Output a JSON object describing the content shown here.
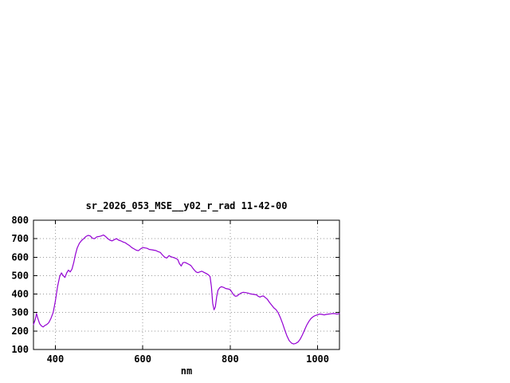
{
  "window": {
    "background_color": "#ffffff"
  },
  "chart_data": {
    "type": "line",
    "title": "sr_2026_053_MSE__y02_r_rad 11-42-00",
    "xlabel": "nm",
    "ylabel": "",
    "xlim": [
      350,
      1050
    ],
    "ylim": [
      100,
      800
    ],
    "xticks": [
      400,
      600,
      800,
      1000
    ],
    "yticks": [
      100,
      200,
      300,
      400,
      500,
      600,
      700,
      800
    ],
    "grid": true,
    "legend": false,
    "line_color": "#9400d3",
    "grid_color": "#9a9a9a",
    "axis_color": "#000000",
    "series": [
      {
        "name": "sr_2026_053_MSE__y02_r_rad",
        "color": "#9400d3",
        "points": [
          [
            350,
            235
          ],
          [
            354,
            262
          ],
          [
            357,
            295
          ],
          [
            360,
            268
          ],
          [
            364,
            240
          ],
          [
            368,
            228
          ],
          [
            372,
            222
          ],
          [
            376,
            230
          ],
          [
            380,
            235
          ],
          [
            385,
            245
          ],
          [
            390,
            268
          ],
          [
            395,
            300
          ],
          [
            400,
            360
          ],
          [
            405,
            440
          ],
          [
            410,
            495
          ],
          [
            414,
            515
          ],
          [
            418,
            500
          ],
          [
            422,
            490
          ],
          [
            426,
            515
          ],
          [
            430,
            530
          ],
          [
            434,
            520
          ],
          [
            438,
            535
          ],
          [
            442,
            570
          ],
          [
            446,
            615
          ],
          [
            450,
            650
          ],
          [
            455,
            675
          ],
          [
            460,
            690
          ],
          [
            465,
            700
          ],
          [
            470,
            712
          ],
          [
            475,
            718
          ],
          [
            480,
            715
          ],
          [
            485,
            702
          ],
          [
            490,
            700
          ],
          [
            495,
            710
          ],
          [
            500,
            712
          ],
          [
            505,
            715
          ],
          [
            510,
            720
          ],
          [
            515,
            712
          ],
          [
            520,
            700
          ],
          [
            525,
            692
          ],
          [
            530,
            688
          ],
          [
            535,
            695
          ],
          [
            540,
            700
          ],
          [
            545,
            692
          ],
          [
            550,
            688
          ],
          [
            555,
            682
          ],
          [
            560,
            678
          ],
          [
            565,
            670
          ],
          [
            570,
            662
          ],
          [
            575,
            652
          ],
          [
            580,
            645
          ],
          [
            585,
            638
          ],
          [
            590,
            635
          ],
          [
            595,
            645
          ],
          [
            600,
            652
          ],
          [
            605,
            650
          ],
          [
            610,
            648
          ],
          [
            615,
            642
          ],
          [
            620,
            640
          ],
          [
            625,
            638
          ],
          [
            630,
            636
          ],
          [
            635,
            630
          ],
          [
            640,
            626
          ],
          [
            645,
            612
          ],
          [
            650,
            600
          ],
          [
            655,
            595
          ],
          [
            660,
            608
          ],
          [
            665,
            602
          ],
          [
            670,
            598
          ],
          [
            675,
            594
          ],
          [
            680,
            588
          ],
          [
            684,
            565
          ],
          [
            688,
            552
          ],
          [
            692,
            570
          ],
          [
            696,
            572
          ],
          [
            700,
            568
          ],
          [
            705,
            562
          ],
          [
            710,
            555
          ],
          [
            714,
            542
          ],
          [
            718,
            530
          ],
          [
            722,
            520
          ],
          [
            726,
            516
          ],
          [
            730,
            520
          ],
          [
            735,
            524
          ],
          [
            740,
            518
          ],
          [
            745,
            512
          ],
          [
            750,
            505
          ],
          [
            754,
            495
          ],
          [
            757,
            440
          ],
          [
            760,
            350
          ],
          [
            763,
            315
          ],
          [
            766,
            330
          ],
          [
            769,
            385
          ],
          [
            772,
            420
          ],
          [
            776,
            435
          ],
          [
            780,
            440
          ],
          [
            785,
            436
          ],
          [
            790,
            430
          ],
          [
            795,
            428
          ],
          [
            800,
            424
          ],
          [
            804,
            410
          ],
          [
            808,
            396
          ],
          [
            812,
            388
          ],
          [
            816,
            390
          ],
          [
            820,
            398
          ],
          [
            825,
            406
          ],
          [
            830,
            410
          ],
          [
            835,
            408
          ],
          [
            840,
            406
          ],
          [
            845,
            402
          ],
          [
            850,
            400
          ],
          [
            855,
            398
          ],
          [
            860,
            396
          ],
          [
            864,
            388
          ],
          [
            868,
            384
          ],
          [
            872,
            388
          ],
          [
            876,
            390
          ],
          [
            880,
            382
          ],
          [
            885,
            372
          ],
          [
            890,
            355
          ],
          [
            895,
            340
          ],
          [
            900,
            325
          ],
          [
            905,
            315
          ],
          [
            910,
            298
          ],
          [
            915,
            272
          ],
          [
            920,
            240
          ],
          [
            925,
            205
          ],
          [
            930,
            172
          ],
          [
            935,
            148
          ],
          [
            940,
            135
          ],
          [
            945,
            130
          ],
          [
            950,
            133
          ],
          [
            955,
            140
          ],
          [
            960,
            155
          ],
          [
            965,
            178
          ],
          [
            970,
            205
          ],
          [
            975,
            232
          ],
          [
            980,
            252
          ],
          [
            985,
            268
          ],
          [
            990,
            278
          ],
          [
            995,
            284
          ],
          [
            1000,
            288
          ],
          [
            1005,
            292
          ],
          [
            1010,
            290
          ],
          [
            1015,
            287
          ],
          [
            1020,
            290
          ],
          [
            1025,
            292
          ],
          [
            1030,
            293
          ],
          [
            1035,
            295
          ],
          [
            1040,
            294
          ],
          [
            1045,
            292
          ],
          [
            1050,
            295
          ]
        ]
      }
    ]
  }
}
